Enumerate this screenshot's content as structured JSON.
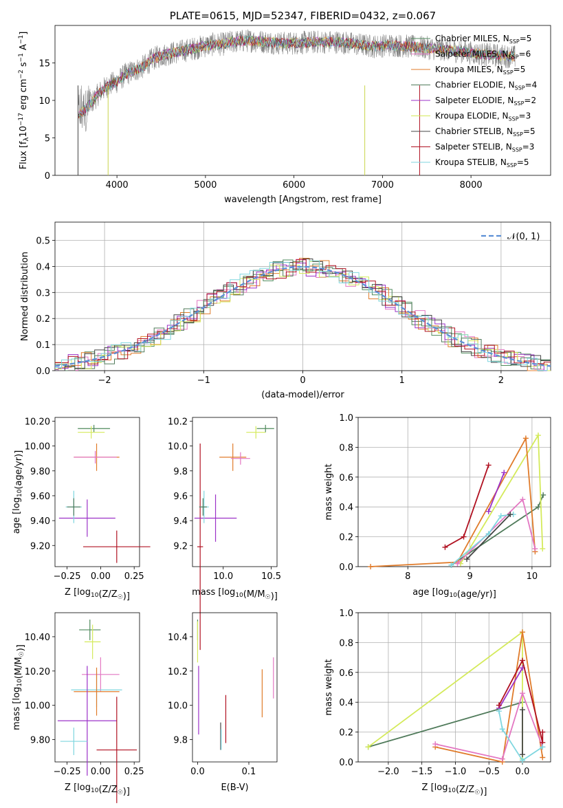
{
  "colors": {
    "Chabrier MILES": "#4f8a5c",
    "Salpeter MILES": "#e377c2",
    "Kroupa MILES": "#e07b2a",
    "Chabrier ELODIE": "#4f7a5a",
    "Salpeter ELODIE": "#9b30c8",
    "Kroupa ELODIE": "#d4ea5a",
    "Chabrier STELIB": "#444444",
    "Salpeter STELIB": "#b01020",
    "Kroupa STELIB": "#7ed6df"
  },
  "chart_data": [
    {
      "id": "spectrum",
      "type": "line",
      "title": "PLATE=0615, MJD=52347, FIBERID=0432, z=0.067",
      "xlabel": "wavelength [Angstrom, rest frame]",
      "ylabel": "Flux [f_λ 10^−17 erg cm^−2 s^−1 A^−1]",
      "xlim": [
        3300,
        8900
      ],
      "ylim": [
        0,
        20
      ],
      "xticks": [
        4000,
        5000,
        6000,
        7000,
        8000
      ],
      "yticks": [
        0,
        5,
        10,
        15
      ],
      "grid": false,
      "legend_position": "right",
      "legend": [
        {
          "name": "Chabrier MILES",
          "nssp": "5"
        },
        {
          "name": "Salpeter MILES",
          "nssp": "6"
        },
        {
          "name": "Kroupa MILES",
          "nssp": "5"
        },
        {
          "name": "Chabrier ELODIE",
          "nssp": "4"
        },
        {
          "name": "Salpeter ELODIE",
          "nssp": "2"
        },
        {
          "name": "Kroupa ELODIE",
          "nssp": "3"
        },
        {
          "name": "Chabrier STELIB",
          "nssp": "5"
        },
        {
          "name": "Salpeter STELIB",
          "nssp": "3"
        },
        {
          "name": "Kroupa STELIB",
          "nssp": "5"
        }
      ],
      "continuum": {
        "x": [
          3560,
          3700,
          3800,
          3900,
          4000,
          4100,
          4200,
          4300,
          4400,
          4500,
          4700,
          4900,
          5000,
          5100,
          5200,
          5300,
          5500,
          5700,
          5900,
          6100,
          6300,
          6500,
          6700,
          6900,
          7100,
          7300,
          7500,
          7700,
          7900,
          8100,
          8300,
          8500
        ],
        "y": [
          8,
          9.5,
          11,
          12,
          12.5,
          13.5,
          14,
          14.5,
          15.5,
          16,
          16.5,
          17,
          17.3,
          17.5,
          17.5,
          17.8,
          18,
          17.8,
          17.6,
          17.7,
          17.8,
          17.8,
          17.5,
          17.2,
          17.4,
          17.2,
          17,
          16.8,
          16.5,
          16.2,
          16,
          15.8
        ]
      }
    },
    {
      "id": "residuals",
      "type": "line",
      "xlabel": "(data-model)/error",
      "ylabel": "Normed distribution",
      "xlim": [
        -2.5,
        2.5
      ],
      "ylim": [
        0,
        0.57
      ],
      "xticks": [
        -2,
        -1,
        0,
        1,
        2
      ],
      "yticks": [
        0.0,
        0.1,
        0.2,
        0.3,
        0.4,
        0.5
      ],
      "grid": true,
      "legend_position": "top-right",
      "legend": "𝒩(0, 1)",
      "gaussian_mu": 0,
      "gaussian_sigma": 1
    },
    {
      "id": "age-vs-Z",
      "type": "scatter",
      "xlabel": "Z [log10(Z/Z☉)]",
      "ylabel": "age  [log10(age/yr)]",
      "xlim": [
        -0.34,
        0.29
      ],
      "ylim": [
        9.03,
        10.23
      ],
      "xticks": [
        -0.25,
        0.0,
        0.25
      ],
      "yticks": [
        9.2,
        9.4,
        9.6,
        9.8,
        10.0,
        10.2
      ],
      "series": [
        {
          "name": "Chabrier MILES",
          "x": -0.05,
          "xerr": 0.12,
          "y": 10.14,
          "yerr": 0.03
        },
        {
          "name": "Kroupa ELODIE",
          "x": -0.07,
          "xerr": 0.1,
          "y": 10.11,
          "yerr": 0.05
        },
        {
          "name": "Kroupa MILES",
          "x": -0.03,
          "xerr": 0.17,
          "y": 9.91,
          "yerr": 0.11
        },
        {
          "name": "Salpeter MILES",
          "x": -0.04,
          "xerr": 0.16,
          "y": 9.91,
          "yerr": 0.05
        },
        {
          "name": "Salpeter STELIB",
          "x": 0.12,
          "xerr": 0.25,
          "y": 9.19,
          "yerr": 0.13
        },
        {
          "name": "Salpeter ELODIE",
          "x": -0.1,
          "xerr": 0.21,
          "y": 9.42,
          "yerr": 0.15
        },
        {
          "name": "Kroupa STELIB",
          "x": -0.2,
          "xerr": 0.06,
          "y": 9.51,
          "yerr": 0.13
        },
        {
          "name": "Chabrier ELODIE",
          "x": -0.2,
          "xerr": 0.05,
          "y": 9.51,
          "yerr": 0.07
        }
      ]
    },
    {
      "id": "age-vs-mass",
      "type": "scatter",
      "xlabel": "mass [log10(M/M☉)]",
      "ylabel": "",
      "xlim": [
        9.68,
        10.56
      ],
      "ylim": [
        9.03,
        10.23
      ],
      "xticks": [
        10.0,
        10.5
      ],
      "yticks": [
        9.2,
        9.4,
        9.6,
        9.8,
        10.0,
        10.2
      ],
      "series": [
        {
          "name": "Chabrier MILES",
          "x": 10.44,
          "xerr": 0.09,
          "y": 10.14,
          "yerr": 0.03
        },
        {
          "name": "Kroupa ELODIE",
          "x": 10.34,
          "xerr": 0.1,
          "y": 10.11,
          "yerr": 0.05
        },
        {
          "name": "Kroupa MILES",
          "x": 10.1,
          "xerr": 0.14,
          "y": 9.91,
          "yerr": 0.11
        },
        {
          "name": "Salpeter MILES",
          "x": 10.18,
          "xerr": 0.1,
          "y": 9.9,
          "yerr": 0.05
        },
        {
          "name": "Salpeter STELIB",
          "x": 9.76,
          "xerr": 0.03,
          "y": 9.19,
          "yerr": 0.83
        },
        {
          "name": "Salpeter ELODIE",
          "x": 9.92,
          "xerr": 0.22,
          "y": 9.42,
          "yerr": 0.19
        },
        {
          "name": "Kroupa STELIB",
          "x": 9.8,
          "xerr": 0.05,
          "y": 9.51,
          "yerr": 0.13
        },
        {
          "name": "Chabrier ELODIE",
          "x": 9.79,
          "xerr": 0.04,
          "y": 9.51,
          "yerr": 0.07
        }
      ]
    },
    {
      "id": "weight-vs-age",
      "type": "line",
      "xlabel": "age  [log10(age/yr)]",
      "ylabel": "mass weight",
      "xlim": [
        7.2,
        10.3
      ],
      "ylim": [
        0,
        1.0
      ],
      "xticks": [
        8,
        9,
        10
      ],
      "yticks": [
        0.0,
        0.2,
        0.4,
        0.6,
        0.8,
        1.0
      ],
      "grid": true,
      "series": [
        {
          "name": "Chabrier ELODIE",
          "x": [
            8.7,
            10.1,
            10.18
          ],
          "y": [
            0.01,
            0.4,
            0.48
          ]
        },
        {
          "name": "Kroupa ELODIE",
          "x": [
            8.85,
            10.1,
            10.17
          ],
          "y": [
            0.02,
            0.88,
            0.12
          ]
        },
        {
          "name": "Kroupa MILES",
          "x": [
            7.4,
            8.8,
            9.9,
            10.05
          ],
          "y": [
            0.0,
            0.03,
            0.86,
            0.1
          ]
        },
        {
          "name": "Salpeter MILES",
          "x": [
            8.8,
            9.85,
            10.05
          ],
          "y": [
            0.02,
            0.45,
            0.12
          ]
        },
        {
          "name": "Salpeter ELODIE",
          "x": [
            9.3,
            9.55
          ],
          "y": [
            0.37,
            0.63
          ]
        },
        {
          "name": "Salpeter STELIB",
          "x": [
            8.6,
            8.9,
            9.3
          ],
          "y": [
            0.13,
            0.2,
            0.68
          ]
        },
        {
          "name": "Kroupa STELIB",
          "x": [
            8.7,
            9.3,
            9.5,
            9.7
          ],
          "y": [
            0.01,
            0.22,
            0.34,
            0.35
          ]
        },
        {
          "name": "Chabrier STELIB",
          "x": [
            8.95,
            9.65
          ],
          "y": [
            0.05,
            0.35
          ]
        }
      ]
    },
    {
      "id": "mass-vs-Z",
      "type": "scatter",
      "xlabel": "Z [log10(Z/Z☉)]",
      "ylabel": "mass [log10(M/M☉)]",
      "xlim": [
        -0.34,
        0.29
      ],
      "ylim": [
        9.67,
        10.54
      ],
      "xticks": [
        -0.25,
        0.0,
        0.25
      ],
      "yticks": [
        9.8,
        10.0,
        10.2,
        10.4
      ],
      "series": [
        {
          "name": "Chabrier MILES",
          "x": -0.08,
          "xerr": 0.08,
          "y": 10.44,
          "yerr": 0.06
        },
        {
          "name": "Kroupa ELODIE",
          "x": -0.06,
          "xerr": 0.06,
          "y": 10.37,
          "yerr": 0.1
        },
        {
          "name": "Salpeter MILES",
          "x": 0.0,
          "xerr": 0.14,
          "y": 10.18,
          "yerr": 0.1
        },
        {
          "name": "Kroupa STELIB",
          "x": -0.03,
          "xerr": 0.19,
          "y": 10.09,
          "yerr": 0.1
        },
        {
          "name": "Kroupa MILES",
          "x": -0.03,
          "xerr": 0.17,
          "y": 10.08,
          "yerr": 0.14
        },
        {
          "name": "Salpeter ELODIE",
          "x": -0.1,
          "xerr": 0.22,
          "y": 9.91,
          "yerr": 0.32
        },
        {
          "name": "Salpeter STELIB",
          "x": 0.12,
          "xerr": 0.15,
          "y": 9.74,
          "yerr": 0.31
        },
        {
          "name": "Kroupa STELIB",
          "x": -0.2,
          "xerr": 0.1,
          "y": 9.79,
          "yerr": 0.08
        }
      ]
    },
    {
      "id": "mass-vs-EBV",
      "type": "scatter",
      "xlabel": "E(B-V)",
      "ylabel": "",
      "xlim": [
        -0.01,
        0.155
      ],
      "ylim": [
        9.67,
        10.54
      ],
      "xticks": [
        0.0,
        0.1
      ],
      "yticks": [
        9.8,
        10.0,
        10.2,
        10.4
      ],
      "series": [
        {
          "name": "Chabrier MILES",
          "x": 0.0,
          "xerr": 0.0,
          "y": 10.44,
          "yerr": 0.06
        },
        {
          "name": "Kroupa ELODIE",
          "x": 0.0,
          "xerr": 0.0,
          "y": 10.37,
          "yerr": 0.12
        },
        {
          "name": "Salpeter ELODIE",
          "x": 0.002,
          "xerr": 0.0,
          "y": 10.03,
          "yerr": 0.2
        },
        {
          "name": "Chabrier STELIB",
          "x": 0.045,
          "xerr": 0.0,
          "y": 9.82,
          "yerr": 0.08
        },
        {
          "name": "Kroupa STELIB",
          "x": 0.046,
          "xerr": 0.0,
          "y": 9.8,
          "yerr": 0.06
        },
        {
          "name": "Salpeter STELIB",
          "x": 0.055,
          "xerr": 0.0,
          "y": 9.92,
          "yerr": 0.14
        },
        {
          "name": "Kroupa MILES",
          "x": 0.126,
          "xerr": 0.0,
          "y": 10.07,
          "yerr": 0.14
        },
        {
          "name": "Salpeter MILES",
          "x": 0.148,
          "xerr": 0.0,
          "y": 10.16,
          "yerr": 0.12
        }
      ]
    },
    {
      "id": "weight-vs-Z",
      "type": "line",
      "xlabel": "Z [log10(Z/Z☉)]",
      "ylabel": "mass weight",
      "xlim": [
        -2.45,
        0.42
      ],
      "ylim": [
        0,
        1.0
      ],
      "xticks": [
        -2.0,
        -1.5,
        -1.0,
        -0.5,
        0.0
      ],
      "yticks": [
        0.0,
        0.2,
        0.4,
        0.6,
        0.8,
        1.0
      ],
      "grid": true,
      "series": [
        {
          "name": "Chabrier ELODIE",
          "x": [
            -2.3,
            0.0
          ],
          "y": [
            0.1,
            0.4
          ]
        },
        {
          "name": "Kroupa ELODIE",
          "x": [
            -2.3,
            0.0,
            0.0
          ],
          "y": [
            0.1,
            0.87,
            0.02
          ]
        },
        {
          "name": "Kroupa MILES",
          "x": [
            -1.3,
            -0.3,
            0.0,
            0.3
          ],
          "y": [
            0.1,
            0.0,
            0.87,
            0.03
          ]
        },
        {
          "name": "Salpeter MILES",
          "x": [
            -1.3,
            -0.3,
            0.0,
            0.3
          ],
          "y": [
            0.12,
            0.02,
            0.46,
            0.1
          ]
        },
        {
          "name": "Salpeter ELODIE",
          "x": [
            -0.35,
            0.0
          ],
          "y": [
            0.36,
            0.63
          ]
        },
        {
          "name": "Salpeter STELIB",
          "x": [
            -0.35,
            0.0,
            0.3,
            0.3
          ],
          "y": [
            0.38,
            0.68,
            0.13,
            0.2
          ]
        },
        {
          "name": "Kroupa STELIB",
          "x": [
            -0.35,
            -0.3,
            0.0,
            0.3
          ],
          "y": [
            0.34,
            0.22,
            0.01,
            0.1
          ]
        },
        {
          "name": "Chabrier STELIB",
          "x": [
            0.0,
            0.0
          ],
          "y": [
            0.05,
            0.35
          ]
        }
      ]
    }
  ]
}
